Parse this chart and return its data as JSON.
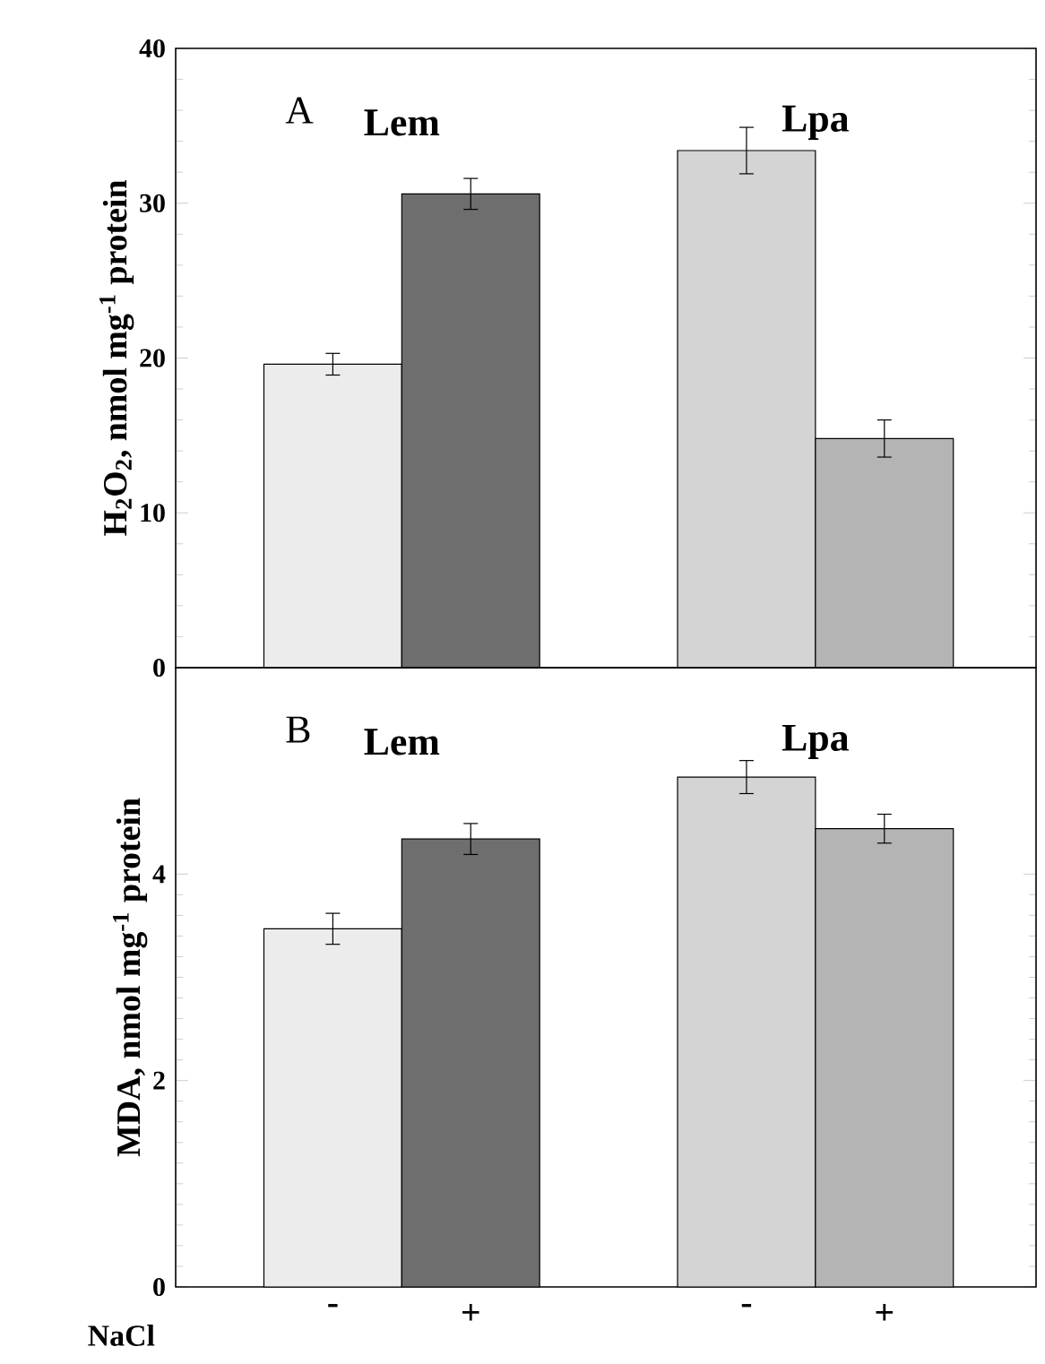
{
  "chart_data": [
    {
      "type": "bar",
      "ylabel": "H$_{2}$O$_{2}$, nmol mg$^{-1}$ protein",
      "categories": [
        null,
        null,
        null,
        null
      ],
      "values": [
        19.6,
        30.6,
        33.4,
        14.8
      ],
      "errors": [
        0.7,
        1.0,
        1.5,
        1.2
      ],
      "colors": [
        "#ececec",
        "#6e6e6e",
        "#d4d4d4",
        "#b4b4b4"
      ],
      "ylim": [
        0,
        40
      ],
      "yticks": [
        0,
        10,
        20,
        30,
        40
      ],
      "tick_labels": "y",
      "annotations": [
        "A",
        "Lem",
        "Lpa"
      ]
    },
    {
      "type": "bar",
      "ylabel": "MDA, nmol mg$^{-1}$ protein",
      "xlabel": "NaCl",
      "categories": [
        "-",
        "+",
        "-",
        "+"
      ],
      "values": [
        3.47,
        4.34,
        4.94,
        4.44
      ],
      "errors": [
        0.15,
        0.15,
        0.16,
        0.14
      ],
      "colors": [
        "#ececec",
        "#6e6e6e",
        "#d4d4d4",
        "#b4b4b4"
      ],
      "ylim": [
        0,
        6
      ],
      "yticks": [
        0,
        2,
        4
      ],
      "annotations": [
        "B",
        "Lem",
        "Lpa"
      ]
    }
  ]
}
